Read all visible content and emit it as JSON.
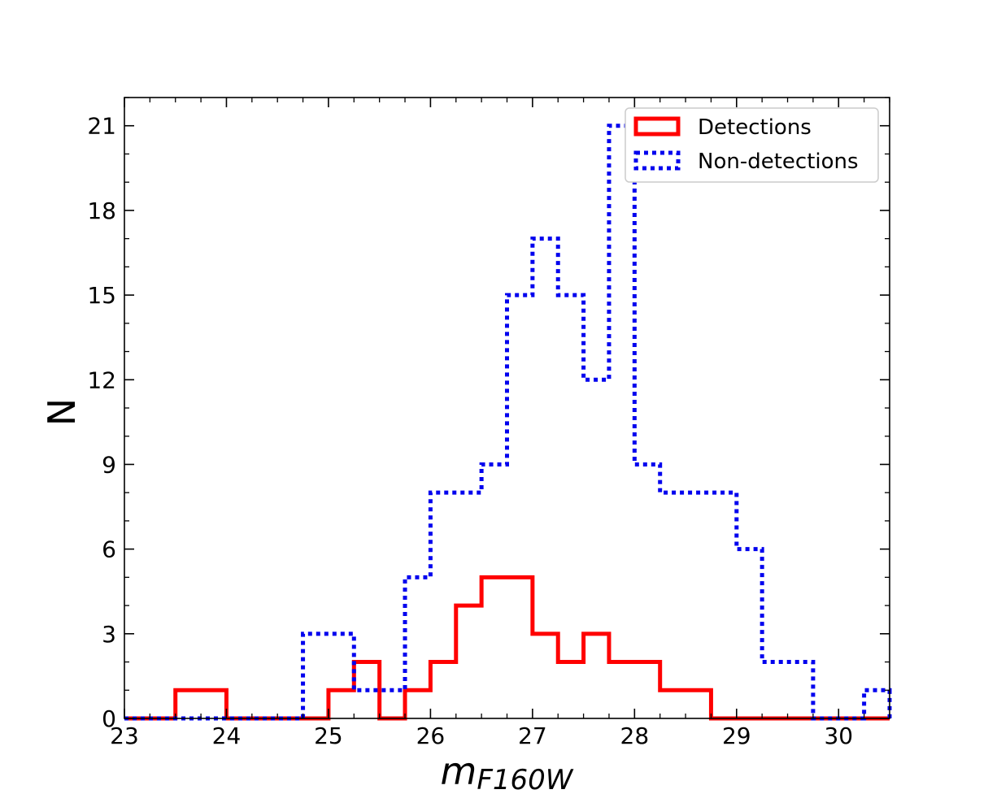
{
  "chart_data": {
    "type": "histogram",
    "title": "",
    "xlabel": "m",
    "xlabel_subscript": "F160W",
    "ylabel": "N",
    "xlim": [
      23.0,
      30.5
    ],
    "ylim": [
      0,
      22
    ],
    "x_ticks": [
      23,
      24,
      25,
      26,
      27,
      28,
      29,
      30
    ],
    "x_tick_labels": [
      "23",
      "24",
      "25",
      "26",
      "27",
      "28",
      "29",
      "30"
    ],
    "y_ticks": [
      0,
      3,
      6,
      9,
      12,
      15,
      18,
      21
    ],
    "y_tick_labels": [
      "0",
      "3",
      "6",
      "9",
      "12",
      "15",
      "18",
      "21"
    ],
    "grid": false,
    "legend_position": "top-right",
    "bin_edges": [
      23.0,
      23.25,
      23.5,
      23.75,
      24.0,
      24.25,
      24.5,
      24.75,
      25.0,
      25.25,
      25.5,
      25.75,
      26.0,
      26.25,
      26.5,
      26.75,
      27.0,
      27.25,
      27.5,
      27.75,
      28.0,
      28.25,
      28.5,
      28.75,
      29.0,
      29.25,
      29.5,
      29.75,
      30.0,
      30.25,
      30.5
    ],
    "series": [
      {
        "name": "Detections",
        "color": "#ff0000",
        "linestyle": "solid",
        "values": [
          0,
          0,
          1,
          1,
          0,
          0,
          0,
          0,
          1,
          2,
          0,
          1,
          2,
          4,
          5,
          5,
          3,
          2,
          3,
          2,
          2,
          1,
          1,
          0,
          0,
          0,
          0,
          0,
          0,
          0
        ]
      },
      {
        "name": "Non-detections",
        "color": "#0000ee",
        "linestyle": "dotted",
        "values": [
          0,
          0,
          0,
          0,
          0,
          0,
          0,
          3,
          3,
          1,
          1,
          5,
          8,
          8,
          9,
          15,
          17,
          15,
          12,
          21,
          9,
          8,
          8,
          8,
          6,
          2,
          2,
          0,
          0,
          1
        ]
      }
    ]
  }
}
